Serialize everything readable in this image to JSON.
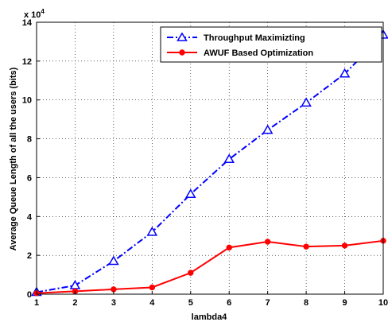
{
  "chart_data": {
    "type": "line",
    "xlabel": "lambda4",
    "ylabel": "Average Queue Length of all the users (bits)",
    "exponent_label": "x 10",
    "exponent_power": "4",
    "x": [
      1,
      2,
      3,
      4,
      5,
      6,
      7,
      8,
      9,
      10
    ],
    "xlim": [
      1,
      10
    ],
    "ylim": [
      0,
      140000
    ],
    "x_ticks": [
      "1",
      "2",
      "3",
      "4",
      "5",
      "6",
      "7",
      "8",
      "9",
      "10"
    ],
    "y_ticks": [
      "0",
      "2",
      "4",
      "6",
      "8",
      "10",
      "12",
      "14"
    ],
    "grid": true,
    "legend_position": "top-right",
    "series": [
      {
        "name": "Throughput Maximizting",
        "color": "#0000ff",
        "marker": "triangle",
        "line_style": "dash-dot",
        "values": [
          1000,
          4500,
          17000,
          32000,
          51500,
          69500,
          84500,
          98500,
          113500,
          133500
        ]
      },
      {
        "name": "AWUF Based Optimization",
        "color": "#ff0000",
        "marker": "circle",
        "line_style": "solid",
        "values": [
          500,
          1500,
          2500,
          3500,
          11000,
          24000,
          27000,
          24500,
          25000,
          27500
        ]
      }
    ]
  }
}
